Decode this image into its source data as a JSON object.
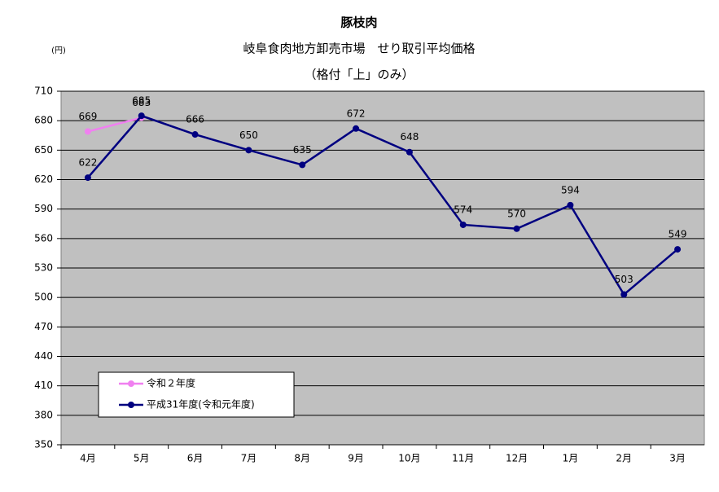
{
  "chart_data": {
    "type": "line",
    "title": "豚枝肉",
    "subtitle": [
      "岐阜食肉地方卸売市場　せり取引平均価格",
      "（格付「上」のみ）"
    ],
    "y_label": "(円)",
    "categories": [
      "4月",
      "5月",
      "6月",
      "7月",
      "8月",
      "9月",
      "10月",
      "11月",
      "12月",
      "1月",
      "2月",
      "3月"
    ],
    "series": [
      {
        "name": "令和２年度",
        "color": "#f080f0",
        "values": [
          669,
          683,
          null,
          null,
          null,
          null,
          null,
          null,
          null,
          null,
          null,
          null
        ]
      },
      {
        "name": "平成31年度(令和元年度)",
        "color": "#000080",
        "values": [
          622,
          685,
          666,
          650,
          635,
          672,
          648,
          574,
          570,
          594,
          503,
          549
        ]
      }
    ],
    "ylim": [
      350,
      710
    ],
    "yticks": [
      350,
      380,
      410,
      440,
      470,
      500,
      530,
      560,
      590,
      620,
      650,
      680,
      710
    ],
    "grid": true,
    "plot_color": "#c0c0c0"
  }
}
